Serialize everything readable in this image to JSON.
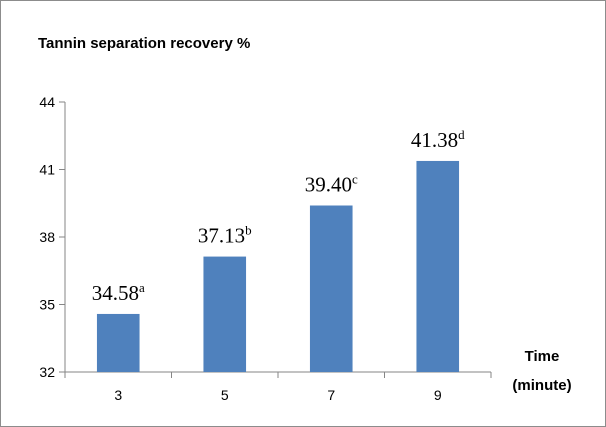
{
  "chart_data": {
    "type": "bar",
    "title": "Tannin separation recovery %",
    "xlabel": "Time (minute)",
    "ylabel": "",
    "categories": [
      "3",
      "5",
      "7",
      "9"
    ],
    "values": [
      34.58,
      37.13,
      39.4,
      41.38
    ],
    "data_labels": [
      "34.58",
      "37.13",
      "39.40",
      "41.38"
    ],
    "significance_letters": [
      "a",
      "b",
      "c",
      "d"
    ],
    "ylim": [
      32,
      44
    ],
    "yticks": [
      "32",
      "35",
      "38",
      "41",
      "44"
    ],
    "grid": false,
    "legend": "none",
    "bar_color": "#4f81bd"
  }
}
